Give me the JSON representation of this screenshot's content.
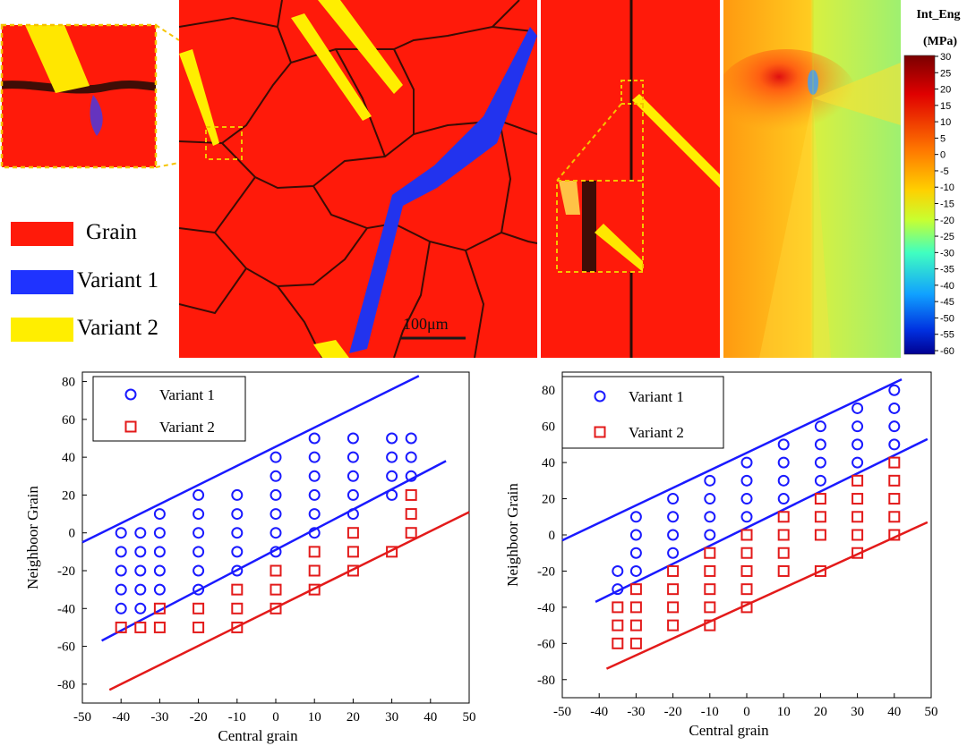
{
  "top": {
    "phase_legend": [
      "Grain",
      "Variant 1",
      "Variant 2"
    ],
    "phase_colors": {
      "grain": "#ff1a0a",
      "variant1": "#1f33ff",
      "variant2": "#ffee00"
    },
    "scale_bar": "100μm",
    "colorbar": {
      "title_line1": "Int_Eng",
      "title_line2": "(MPa)",
      "ticks": [
        30,
        25,
        20,
        15,
        10,
        5,
        0,
        -5,
        -10,
        -15,
        -20,
        -25,
        -30,
        -35,
        -40,
        -45,
        -50,
        -55,
        -60
      ]
    }
  },
  "chart_data": [
    {
      "type": "scatter",
      "xlabel": "Central grain",
      "ylabel": "Neighboor Grain",
      "xlim": [
        -50,
        50
      ],
      "ylim": [
        -90,
        85
      ],
      "xticks": [
        -50,
        -40,
        -30,
        -20,
        -10,
        0,
        10,
        20,
        30,
        40,
        50
      ],
      "yticks": [
        -80,
        -60,
        -40,
        -20,
        0,
        20,
        40,
        60,
        80
      ],
      "legend": [
        "Variant 1",
        "Variant 2"
      ],
      "series": [
        {
          "name": "Variant 1",
          "marker": "circle",
          "color": "#1a1aff",
          "points": [
            [
              -40,
              0
            ],
            [
              -40,
              -10
            ],
            [
              -40,
              -20
            ],
            [
              -40,
              -30
            ],
            [
              -40,
              -40
            ],
            [
              -35,
              0
            ],
            [
              -35,
              -10
            ],
            [
              -35,
              -20
            ],
            [
              -35,
              -30
            ],
            [
              -35,
              -40
            ],
            [
              -30,
              10
            ],
            [
              -30,
              0
            ],
            [
              -30,
              -10
            ],
            [
              -30,
              -20
            ],
            [
              -30,
              -30
            ],
            [
              -20,
              20
            ],
            [
              -20,
              10
            ],
            [
              -20,
              0
            ],
            [
              -20,
              -10
            ],
            [
              -20,
              -20
            ],
            [
              -20,
              -30
            ],
            [
              -10,
              20
            ],
            [
              -10,
              10
            ],
            [
              -10,
              0
            ],
            [
              -10,
              -10
            ],
            [
              -10,
              -20
            ],
            [
              0,
              40
            ],
            [
              0,
              30
            ],
            [
              0,
              20
            ],
            [
              0,
              10
            ],
            [
              0,
              0
            ],
            [
              0,
              -10
            ],
            [
              10,
              50
            ],
            [
              10,
              40
            ],
            [
              10,
              30
            ],
            [
              10,
              20
            ],
            [
              10,
              10
            ],
            [
              10,
              0
            ],
            [
              20,
              50
            ],
            [
              20,
              40
            ],
            [
              20,
              30
            ],
            [
              20,
              20
            ],
            [
              20,
              10
            ],
            [
              30,
              50
            ],
            [
              30,
              40
            ],
            [
              30,
              30
            ],
            [
              30,
              20
            ],
            [
              35,
              50
            ],
            [
              35,
              40
            ],
            [
              35,
              30
            ]
          ]
        },
        {
          "name": "Variant 2",
          "marker": "square",
          "color": "#e31a1a",
          "points": [
            [
              -40,
              -50
            ],
            [
              -35,
              -50
            ],
            [
              -30,
              -40
            ],
            [
              -30,
              -50
            ],
            [
              -20,
              -40
            ],
            [
              -20,
              -50
            ],
            [
              -10,
              -30
            ],
            [
              -10,
              -40
            ],
            [
              -10,
              -50
            ],
            [
              0,
              -20
            ],
            [
              0,
              -30
            ],
            [
              0,
              -40
            ],
            [
              10,
              -10
            ],
            [
              10,
              -20
            ],
            [
              10,
              -30
            ],
            [
              20,
              0
            ],
            [
              20,
              -10
            ],
            [
              20,
              -20
            ],
            [
              30,
              -10
            ],
            [
              35,
              20
            ],
            [
              35,
              10
            ],
            [
              35,
              0
            ]
          ]
        }
      ],
      "lines": [
        {
          "color": "#1a1aff",
          "from": [
            -50,
            -5
          ],
          "to": [
            37,
            83
          ]
        },
        {
          "color": "#1a1aff",
          "from": [
            -45,
            -57
          ],
          "to": [
            44,
            38
          ]
        },
        {
          "color": "#e31a1a",
          "from": [
            -43,
            -83
          ],
          "to": [
            50,
            11
          ]
        }
      ]
    },
    {
      "type": "scatter",
      "xlabel": "Central grain",
      "ylabel": "Neighboor Grain",
      "xlim": [
        -50,
        50
      ],
      "ylim": [
        -90,
        90
      ],
      "xticks": [
        -50,
        -40,
        -30,
        -20,
        -10,
        0,
        10,
        20,
        30,
        40,
        50
      ],
      "yticks": [
        -80,
        -60,
        -40,
        -20,
        0,
        20,
        40,
        60,
        80
      ],
      "legend": [
        "Variant 1",
        "Variant 2"
      ],
      "series": [
        {
          "name": "Variant 1",
          "marker": "circle",
          "color": "#1a1aff",
          "points": [
            [
              -35,
              -20
            ],
            [
              -35,
              -30
            ],
            [
              -30,
              10
            ],
            [
              -30,
              0
            ],
            [
              -30,
              -10
            ],
            [
              -30,
              -20
            ],
            [
              -20,
              20
            ],
            [
              -20,
              10
            ],
            [
              -20,
              0
            ],
            [
              -20,
              -10
            ],
            [
              -10,
              30
            ],
            [
              -10,
              20
            ],
            [
              -10,
              10
            ],
            [
              -10,
              0
            ],
            [
              0,
              40
            ],
            [
              0,
              30
            ],
            [
              0,
              20
            ],
            [
              0,
              10
            ],
            [
              10,
              50
            ],
            [
              10,
              40
            ],
            [
              10,
              30
            ],
            [
              10,
              20
            ],
            [
              20,
              60
            ],
            [
              20,
              50
            ],
            [
              20,
              40
            ],
            [
              20,
              30
            ],
            [
              30,
              70
            ],
            [
              30,
              60
            ],
            [
              30,
              50
            ],
            [
              30,
              40
            ],
            [
              40,
              80
            ],
            [
              40,
              70
            ],
            [
              40,
              60
            ],
            [
              40,
              50
            ]
          ]
        },
        {
          "name": "Variant 2",
          "marker": "square",
          "color": "#e31a1a",
          "points": [
            [
              -35,
              -40
            ],
            [
              -35,
              -50
            ],
            [
              -35,
              -60
            ],
            [
              -30,
              -30
            ],
            [
              -30,
              -40
            ],
            [
              -30,
              -50
            ],
            [
              -30,
              -60
            ],
            [
              -20,
              -20
            ],
            [
              -20,
              -30
            ],
            [
              -20,
              -40
            ],
            [
              -20,
              -50
            ],
            [
              -10,
              -10
            ],
            [
              -10,
              -20
            ],
            [
              -10,
              -30
            ],
            [
              -10,
              -40
            ],
            [
              -10,
              -50
            ],
            [
              0,
              0
            ],
            [
              0,
              -10
            ],
            [
              0,
              -20
            ],
            [
              0,
              -30
            ],
            [
              0,
              -40
            ],
            [
              10,
              10
            ],
            [
              10,
              0
            ],
            [
              10,
              -10
            ],
            [
              10,
              -20
            ],
            [
              20,
              20
            ],
            [
              20,
              10
            ],
            [
              20,
              0
            ],
            [
              20,
              -20
            ],
            [
              30,
              30
            ],
            [
              30,
              20
            ],
            [
              30,
              10
            ],
            [
              30,
              0
            ],
            [
              30,
              -10
            ],
            [
              40,
              40
            ],
            [
              40,
              30
            ],
            [
              40,
              20
            ],
            [
              40,
              10
            ],
            [
              40,
              0
            ]
          ]
        }
      ],
      "lines": [
        {
          "color": "#1a1aff",
          "from": [
            -50,
            -3
          ],
          "to": [
            42,
            86
          ]
        },
        {
          "color": "#1a1aff",
          "from": [
            -41,
            -37
          ],
          "to": [
            49,
            53
          ]
        },
        {
          "color": "#e31a1a",
          "from": [
            -38,
            -74
          ],
          "to": [
            49,
            7
          ]
        }
      ]
    }
  ]
}
